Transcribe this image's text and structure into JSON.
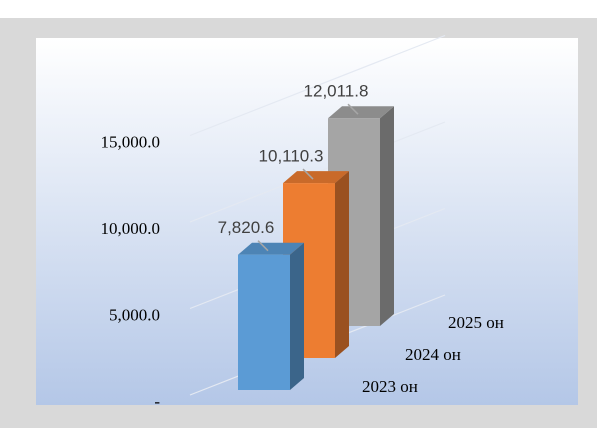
{
  "chart_data": {
    "type": "bar3d",
    "categories": [
      "2023 он",
      "2024 он",
      "2025 он"
    ],
    "values": [
      7820.6,
      10110.3,
      12011.8
    ],
    "value_labels": [
      "7,820.6",
      "10,110.3",
      "12,011.8"
    ],
    "colors": [
      "#5b9bd5",
      "#ed7d31",
      "#a5a5a5"
    ],
    "ylim": [
      0,
      15000
    ],
    "yticks": [
      {
        "value": 0,
        "label": "-"
      },
      {
        "value": 5000,
        "label": "5,000.0"
      },
      {
        "value": 10000,
        "label": "10,000.0"
      },
      {
        "value": 15000,
        "label": "15,000.0"
      }
    ],
    "grid": true
  }
}
